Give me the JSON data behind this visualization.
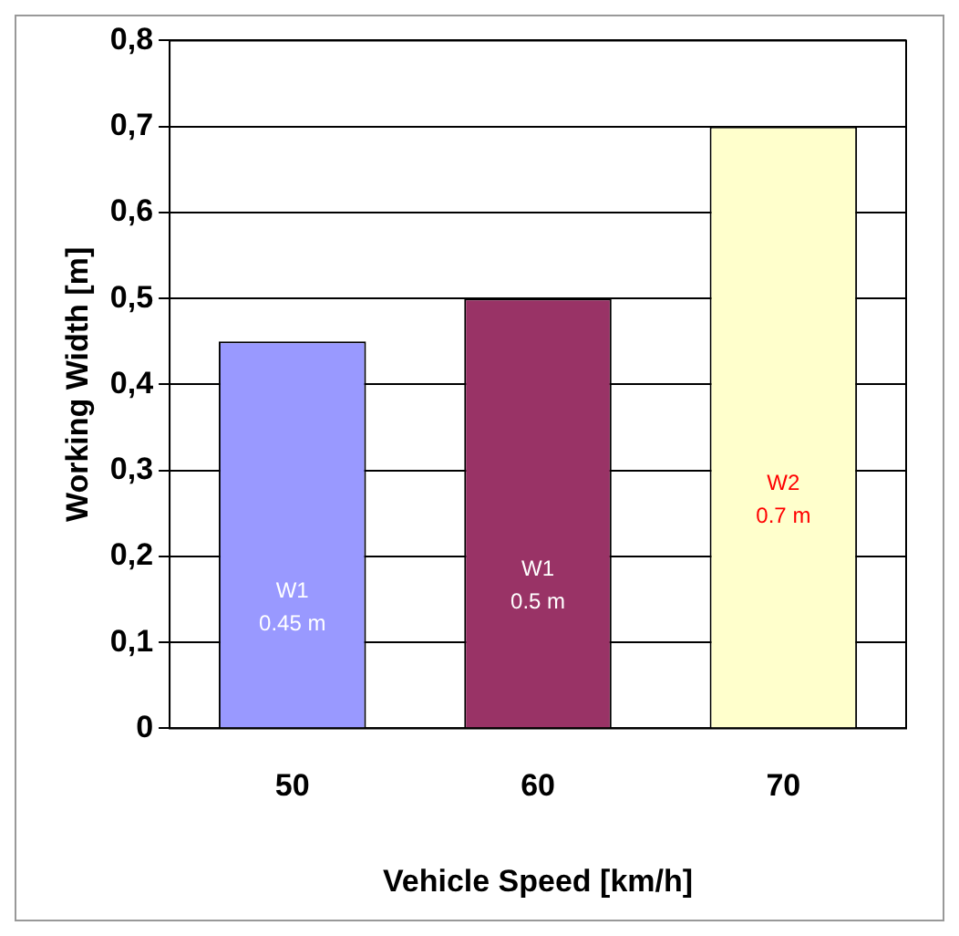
{
  "chart_data": {
    "type": "bar",
    "xlabel": "Vehicle Speed [km/h]",
    "ylabel": "Working Width [m]",
    "categories": [
      "50",
      "60",
      "70"
    ],
    "values": [
      0.45,
      0.5,
      0.7
    ],
    "colors": [
      "#9999ff",
      "#993366",
      "#ffffcc"
    ],
    "value_labels": [
      "W1\n0.45 m",
      "W1\n0.5 m",
      "W2\n0.7 m"
    ],
    "ylim": [
      0,
      0.8
    ],
    "yticks": [
      {
        "value": 0,
        "label": "0"
      },
      {
        "value": 0.1,
        "label": "0,1"
      },
      {
        "value": 0.2,
        "label": "0,2"
      },
      {
        "value": 0.3,
        "label": "0,3"
      },
      {
        "value": 0.4,
        "label": "0,4"
      },
      {
        "value": 0.5,
        "label": "0,5"
      },
      {
        "value": 0.6,
        "label": "0,6"
      },
      {
        "value": 0.7,
        "label": "0,7"
      },
      {
        "value": 0.8,
        "label": "0,8"
      }
    ],
    "grid": "y",
    "legend": false
  }
}
